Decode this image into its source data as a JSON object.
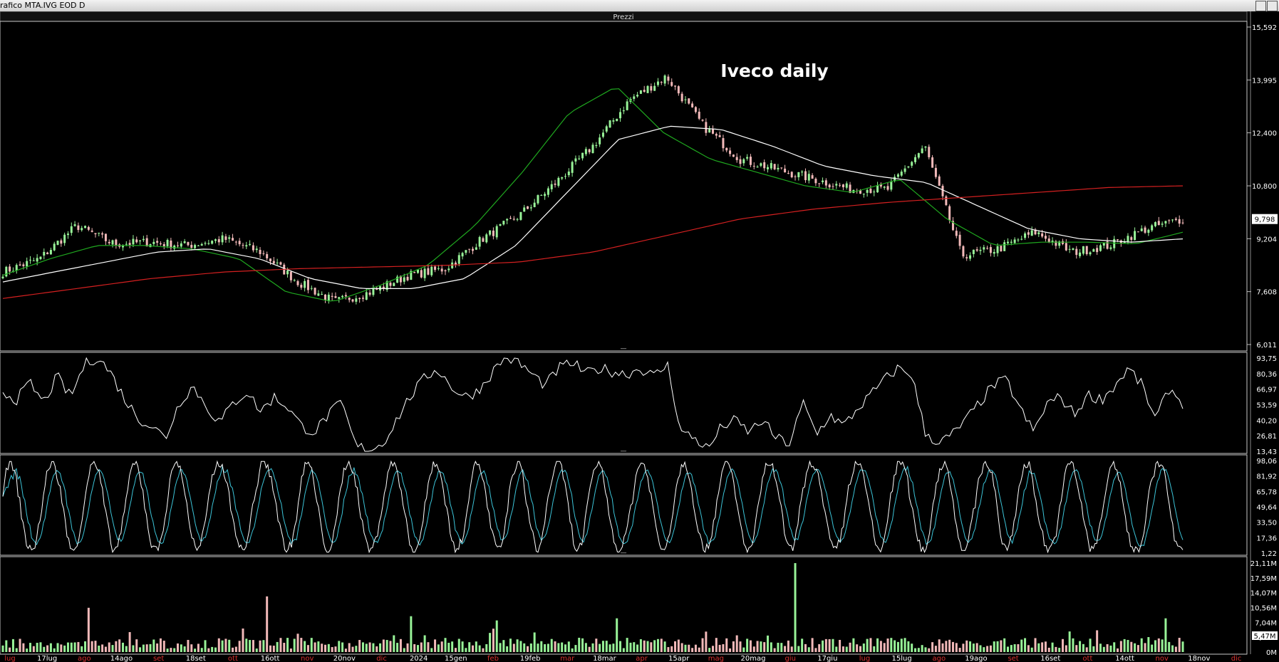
{
  "window": {
    "title": "rafico MTA.IVG EOD D"
  },
  "panel_header": "Prezzi",
  "splitter_glyphs": [
    "—",
    "—",
    "—"
  ],
  "colors": {
    "background": "#000000",
    "candle_up": "#98f398",
    "candle_down": "#f2b9b9",
    "sma_short": "#1fa81f",
    "sma_mid": "#ffffff",
    "sma_long": "#d42020",
    "oscillator": "#ffffff",
    "stoch_k": "#ffffff",
    "stoch_d": "#3cc4d8",
    "axis_text": "#ffffff",
    "month_label": "#d83030",
    "week_label": "#ffffff"
  },
  "chart_data": [
    {
      "type": "candlestick",
      "title": "Iveco daily",
      "ylim": [
        6011,
        15592
      ],
      "yticks": [
        "15,592",
        "13,995",
        "12,400",
        "10,800",
        "9,204",
        "7,608",
        "6,011"
      ],
      "ytick_values": [
        15592,
        13995,
        12400,
        10800,
        9204,
        7608,
        6011
      ],
      "last_price": "9,798",
      "price_path": [
        [
          "Jul 2023",
          8.2
        ],
        [
          "mid Jul 2023",
          8.6
        ],
        [
          "Aug 2023",
          9.6
        ],
        [
          "mid Aug 2023",
          9.05
        ],
        [
          "Sep 2023",
          9.1
        ],
        [
          "mid Sep 2023",
          9.0
        ],
        [
          "Oct 2023",
          9.2
        ],
        [
          "mid Oct 2023",
          8.8
        ],
        [
          "Nov 2023",
          7.9
        ],
        [
          "mid Nov 2023",
          7.3
        ],
        [
          "Dec 2023",
          7.6
        ],
        [
          "mid Dec 2023",
          8.1
        ],
        [
          "Jan 2024",
          8.3
        ],
        [
          "mid Jan 2024",
          9.2
        ],
        [
          "Feb 2024",
          9.9
        ],
        [
          "mid Feb 2024",
          10.9
        ],
        [
          "Mar 2024",
          12.0
        ],
        [
          "mid Mar 2024",
          13.4
        ],
        [
          "Apr 2024",
          14.1
        ],
        [
          "mid Apr 2024",
          12.6
        ],
        [
          "May 2024",
          11.6
        ],
        [
          "mid May 2024",
          11.3
        ],
        [
          "Jun 2024",
          11.0
        ],
        [
          "mid Jun 2024",
          10.7
        ],
        [
          "Jul 2024",
          10.7
        ],
        [
          "mid Jul 2024",
          12.0
        ],
        [
          "Aug 2024",
          8.7
        ],
        [
          "mid Aug 2024",
          8.9
        ],
        [
          "Sep 2024",
          9.4
        ],
        [
          "mid Sep 2024",
          8.8
        ],
        [
          "Oct 2024",
          9.0
        ],
        [
          "mid Oct 2024",
          9.5
        ],
        [
          "Nov 2024",
          9.8
        ]
      ],
      "moving_averages": [
        {
          "color": "green",
          "path": [
            8.1,
            8.6,
            9.0,
            9.0,
            8.9,
            8.6,
            7.6,
            7.3,
            7.8,
            8.4,
            9.6,
            11.2,
            13.0,
            13.8,
            12.4,
            11.6,
            11.2,
            10.8,
            10.6,
            11.0,
            9.8,
            9.0,
            9.1,
            9.1,
            9.05,
            9.4
          ]
        },
        {
          "color": "white",
          "path": [
            7.9,
            8.2,
            8.5,
            8.8,
            8.9,
            8.6,
            8.0,
            7.7,
            7.7,
            8.0,
            9.0,
            10.6,
            12.2,
            12.6,
            12.5,
            12.0,
            11.4,
            11.1,
            10.9,
            10.2,
            9.5,
            9.2,
            9.1,
            9.2
          ]
        },
        {
          "color": "red",
          "path": [
            7.4,
            7.7,
            8.0,
            8.2,
            8.3,
            8.35,
            8.4,
            8.5,
            8.8,
            9.3,
            9.8,
            10.1,
            10.3,
            10.45,
            10.6,
            10.75,
            10.8
          ]
        }
      ]
    },
    {
      "type": "line",
      "name": "oscillator",
      "ylim": [
        13.43,
        93.75
      ],
      "yticks": [
        "93,75",
        "80,36",
        "66,97",
        "53,59",
        "40,20",
        "26,81",
        "13,43"
      ],
      "ytick_values": [
        93.75,
        80.36,
        66.97,
        53.59,
        40.2,
        26.81,
        13.43
      ],
      "path": [
        65,
        58,
        72,
        55,
        78,
        60,
        88,
        95,
        80,
        58,
        42,
        35,
        25,
        55,
        70,
        52,
        38,
        55,
        65,
        48,
        60,
        52,
        35,
        30,
        45,
        55,
        18,
        15,
        20,
        40,
        60,
        75,
        85,
        70,
        60,
        65,
        80,
        95,
        90,
        80,
        70,
        85,
        90,
        80,
        85,
        82,
        80,
        85,
        78,
        88,
        30,
        25,
        15,
        35,
        40,
        30,
        40,
        25,
        20,
        55,
        28,
        45,
        35,
        50,
        62,
        75,
        85,
        80,
        30,
        20,
        28,
        40,
        55,
        70,
        75,
        50,
        30,
        55,
        60,
        45,
        62,
        58,
        70,
        85,
        70,
        40,
        68,
        55
      ]
    },
    {
      "type": "line",
      "name": "stochastic",
      "ylim": [
        1.22,
        98.06
      ],
      "yticks": [
        "98,06",
        "81,92",
        "65,78",
        "49,64",
        "33,50",
        "17,36",
        "1,22"
      ],
      "ytick_values": [
        98.06,
        81.92,
        65.78,
        49.64,
        33.5,
        17.36,
        1.22
      ],
      "cycles": 28
    },
    {
      "type": "bar",
      "name": "volume",
      "ylim": [
        0,
        21.11
      ],
      "yticks": [
        "21,11M",
        "17,59M",
        "14,07M",
        "10,56M",
        "7,04M",
        "3,52M",
        "0M"
      ],
      "ytick_values": [
        21.11,
        17.59,
        14.07,
        10.56,
        7.04,
        3.52,
        0
      ],
      "last_volume": "5,47M",
      "spikes": [
        {
          "date": "early Aug 2023",
          "value": 10.5
        },
        {
          "date": "Nov 2023",
          "value": 13.2
        },
        {
          "date": "mid Jan 2024",
          "value": 8.5
        },
        {
          "date": "Feb 2024",
          "value": 7.5
        },
        {
          "date": "Apr 2024",
          "value": 8.0
        },
        {
          "date": "mid Jul 2024",
          "value": 21.1
        },
        {
          "date": "Nov 2024",
          "value": 8.0
        }
      ]
    }
  ],
  "x_axis": {
    "labels": [
      {
        "text": "lug",
        "month": true
      },
      {
        "text": "17lug",
        "month": false
      },
      {
        "text": "ago",
        "month": true
      },
      {
        "text": "14ago",
        "month": false
      },
      {
        "text": "set",
        "month": true
      },
      {
        "text": "18set",
        "month": false
      },
      {
        "text": "ott",
        "month": true
      },
      {
        "text": "16ott",
        "month": false
      },
      {
        "text": "nov",
        "month": true
      },
      {
        "text": "20nov",
        "month": false
      },
      {
        "text": "dic",
        "month": true
      },
      {
        "text": "2024",
        "month": false
      },
      {
        "text": "15gen",
        "month": false
      },
      {
        "text": "feb",
        "month": true
      },
      {
        "text": "19feb",
        "month": false
      },
      {
        "text": "mar",
        "month": true
      },
      {
        "text": "18mar",
        "month": false
      },
      {
        "text": "apr",
        "month": true
      },
      {
        "text": "15apr",
        "month": false
      },
      {
        "text": "mag",
        "month": true
      },
      {
        "text": "20mag",
        "month": false
      },
      {
        "text": "giu",
        "month": true
      },
      {
        "text": "17giu",
        "month": false
      },
      {
        "text": "lug",
        "month": true
      },
      {
        "text": "15lug",
        "month": false
      },
      {
        "text": "ago",
        "month": true
      },
      {
        "text": "19ago",
        "month": false
      },
      {
        "text": "set",
        "month": true
      },
      {
        "text": "16set",
        "month": false
      },
      {
        "text": "ott",
        "month": true
      },
      {
        "text": "14ott",
        "month": false
      },
      {
        "text": "nov",
        "month": true
      },
      {
        "text": "18nov",
        "month": false
      },
      {
        "text": "dic",
        "month": true
      }
    ]
  }
}
